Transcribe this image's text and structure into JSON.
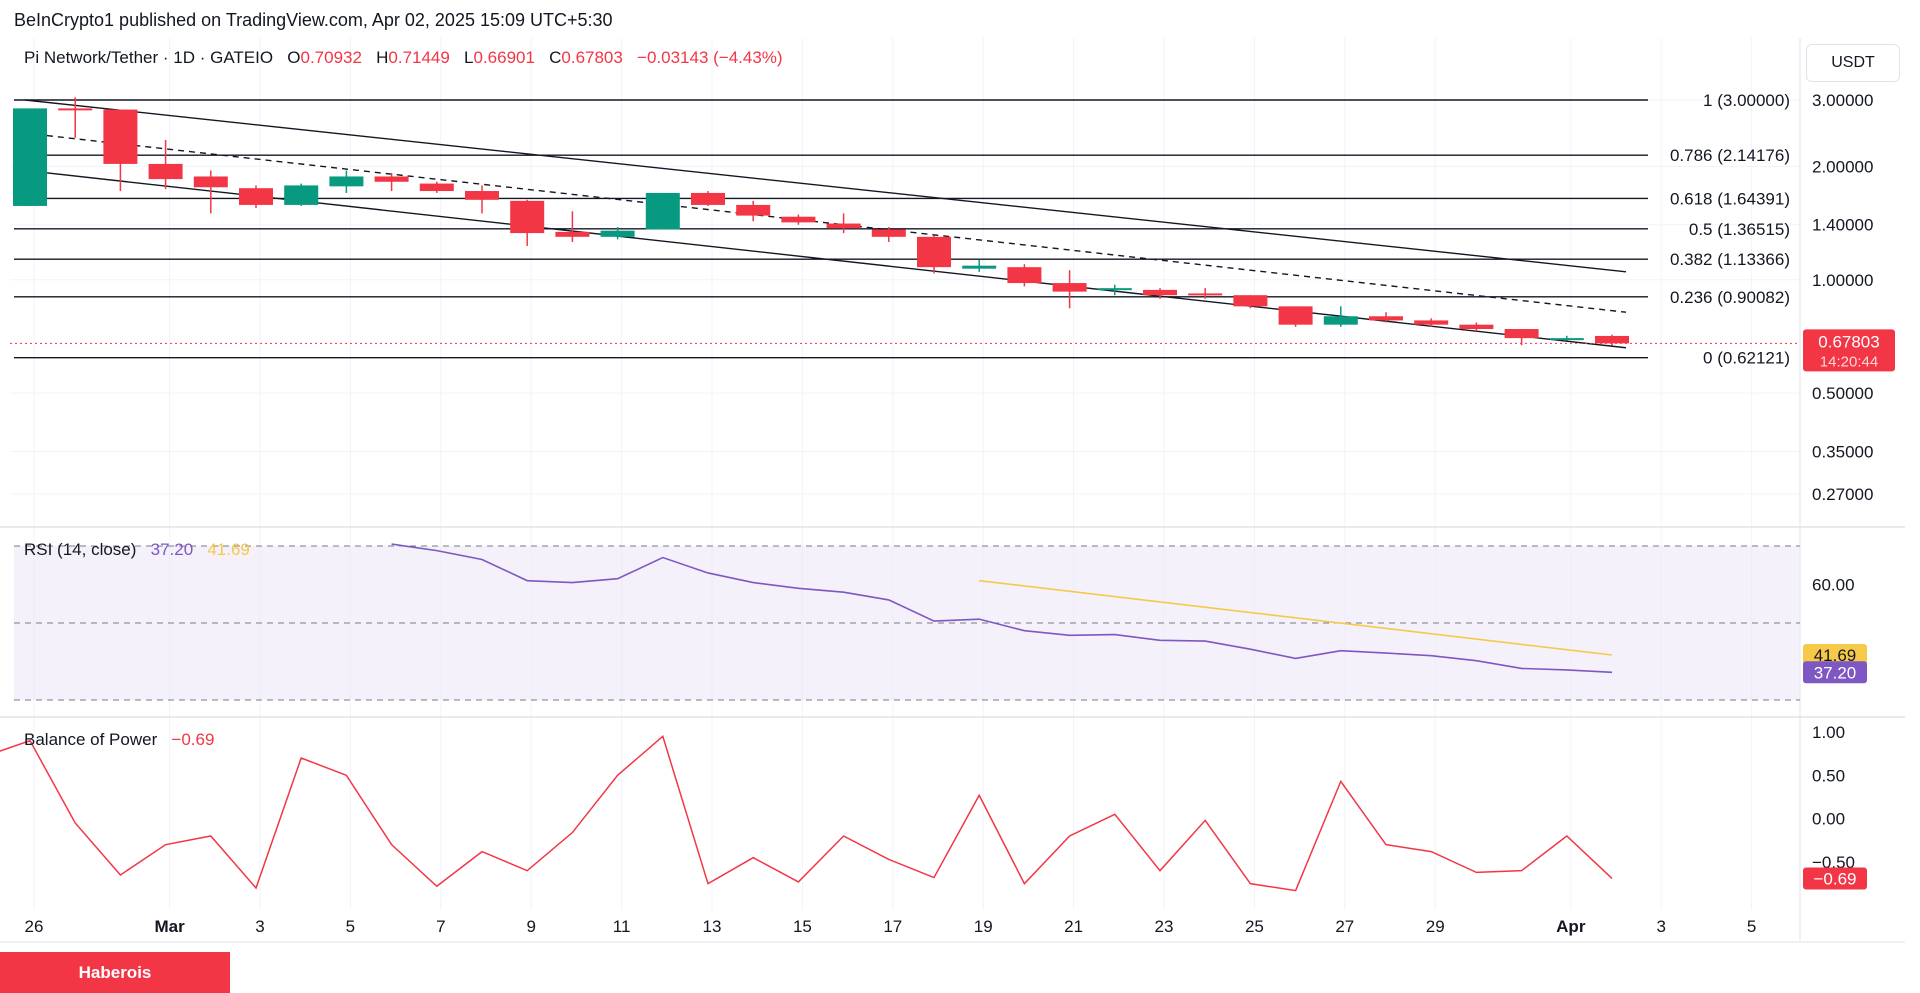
{
  "publisher": "BeInCrypto1 published on TradingView.com, Apr 02, 2025 15:09 UTC+5:30",
  "legend": {
    "symbol": "Pi Network/Tether · 1D · GATEIO",
    "o_label": "O",
    "o": "0.70932",
    "h_label": "H",
    "h": "0.71449",
    "l_label": "L",
    "l": "0.66901",
    "c_label": "C",
    "c": "0.67803",
    "change": "−0.03143 (−4.43%)"
  },
  "currency": "USDT",
  "brand": "Haberois",
  "colors": {
    "up": "#089981",
    "down": "#f23645",
    "rsi": "#7e57c2",
    "rsi_ma": "#f7c948",
    "bop": "#f23645"
  },
  "price_axis": [
    "3.00000",
    "2.00000",
    "1.40000",
    "1.00000",
    "0.50000",
    "0.35000",
    "0.27000"
  ],
  "last_price_tag": {
    "price": "0.67803",
    "countdown": "14:20:44"
  },
  "fib_levels": [
    {
      "label": "1 (3.00000)",
      "value": 3.0
    },
    {
      "label": "0.786 (2.14176)",
      "value": 2.14176
    },
    {
      "label": "0.618 (1.64391)",
      "value": 1.64391
    },
    {
      "label": "0.5 (1.36515)",
      "value": 1.36515
    },
    {
      "label": "0.382 (1.13366)",
      "value": 1.13366
    },
    {
      "label": "0.236 (0.90082)",
      "value": 0.90082
    },
    {
      "label": "0 (0.62121)",
      "value": 0.62121
    }
  ],
  "x_labels": [
    "26",
    "Mar",
    "3",
    "5",
    "7",
    "9",
    "11",
    "13",
    "15",
    "17",
    "19",
    "21",
    "23",
    "25",
    "27",
    "29",
    "Apr",
    "3",
    "5"
  ],
  "rsi": {
    "title": "RSI (14, close)",
    "value": "37.20",
    "ma_value": "41.69",
    "axis_label": "60.00",
    "tag_ma": "41.69",
    "tag_rsi": "37.20"
  },
  "bop": {
    "title": "Balance of Power",
    "value": "−0.69",
    "axis": [
      "1.00",
      "0.50",
      "0.00",
      "−0.50"
    ],
    "tag": "−0.69"
  },
  "chart_data": [
    {
      "type": "candlestick",
      "title": "Pi Network/Tether · 1D · GATEIO",
      "scale": "log",
      "ylim": [
        0.24,
        3.4
      ],
      "x": [
        "Feb 26",
        "Feb 27",
        "Feb 28",
        "Mar 1",
        "Mar 2",
        "Mar 3",
        "Mar 4",
        "Mar 5",
        "Mar 6",
        "Mar 7",
        "Mar 8",
        "Mar 9",
        "Mar 10",
        "Mar 11",
        "Mar 12",
        "Mar 13",
        "Mar 14",
        "Mar 15",
        "Mar 16",
        "Mar 17",
        "Mar 18",
        "Mar 19",
        "Mar 20",
        "Mar 21",
        "Mar 22",
        "Mar 23",
        "Mar 24",
        "Mar 25",
        "Mar 26",
        "Mar 27",
        "Mar 28",
        "Mar 29",
        "Mar 30",
        "Mar 31",
        "Apr 1",
        "Apr 2"
      ],
      "ohlc": [
        [
          1.57,
          2.85,
          1.57,
          2.85
        ],
        [
          2.85,
          3.05,
          2.38,
          2.82
        ],
        [
          2.83,
          2.83,
          1.72,
          2.03
        ],
        [
          2.03,
          2.35,
          1.74,
          1.85
        ],
        [
          1.88,
          1.95,
          1.5,
          1.76
        ],
        [
          1.75,
          1.78,
          1.55,
          1.58
        ],
        [
          1.58,
          1.8,
          1.57,
          1.78
        ],
        [
          1.77,
          1.95,
          1.7,
          1.88
        ],
        [
          1.88,
          1.92,
          1.72,
          1.82
        ],
        [
          1.8,
          1.82,
          1.7,
          1.72
        ],
        [
          1.72,
          1.78,
          1.5,
          1.63
        ],
        [
          1.62,
          1.63,
          1.23,
          1.33
        ],
        [
          1.34,
          1.52,
          1.26,
          1.3
        ],
        [
          1.3,
          1.38,
          1.28,
          1.35
        ],
        [
          1.36,
          1.7,
          1.36,
          1.7
        ],
        [
          1.7,
          1.72,
          1.57,
          1.58
        ],
        [
          1.58,
          1.62,
          1.43,
          1.48
        ],
        [
          1.47,
          1.49,
          1.4,
          1.42
        ],
        [
          1.41,
          1.5,
          1.33,
          1.37
        ],
        [
          1.36,
          1.38,
          1.26,
          1.3
        ],
        [
          1.3,
          1.31,
          1.04,
          1.08
        ],
        [
          1.07,
          1.13,
          1.05,
          1.09
        ],
        [
          1.08,
          1.1,
          0.96,
          0.98
        ],
        [
          0.98,
          1.06,
          0.84,
          0.93
        ],
        [
          0.95,
          0.97,
          0.91,
          0.95
        ],
        [
          0.94,
          0.95,
          0.89,
          0.91
        ],
        [
          0.92,
          0.95,
          0.89,
          0.91
        ],
        [
          0.91,
          0.91,
          0.84,
          0.85
        ],
        [
          0.85,
          0.85,
          0.75,
          0.76
        ],
        [
          0.76,
          0.85,
          0.75,
          0.8
        ],
        [
          0.8,
          0.82,
          0.77,
          0.78
        ],
        [
          0.78,
          0.79,
          0.75,
          0.76
        ],
        [
          0.76,
          0.77,
          0.73,
          0.74
        ],
        [
          0.74,
          0.74,
          0.67,
          0.7
        ],
        [
          0.7,
          0.71,
          0.69,
          0.7
        ],
        [
          0.70932,
          0.71449,
          0.66901,
          0.67803
        ]
      ],
      "trendlines": [
        {
          "name": "channel-upper",
          "from": [
            "Feb 26",
            3.0
          ],
          "to": [
            "Apr 2",
            1.05
          ],
          "style": "solid"
        },
        {
          "name": "channel-mid",
          "from": [
            "Feb 26",
            2.45
          ],
          "to": [
            "Apr 2",
            0.82
          ],
          "style": "dashed"
        },
        {
          "name": "channel-lower",
          "from": [
            "Feb 26",
            1.95
          ],
          "to": [
            "Apr 2",
            0.66
          ],
          "style": "solid"
        }
      ]
    },
    {
      "type": "line",
      "title": "RSI (14, close)",
      "ylim": [
        20,
        80
      ],
      "series": [
        {
          "name": "RSI",
          "x": [
            "Mar 6",
            "Mar 7",
            "Mar 8",
            "Mar 9",
            "Mar 10",
            "Mar 11",
            "Mar 12",
            "Mar 13",
            "Mar 14",
            "Mar 15",
            "Mar 16",
            "Mar 17",
            "Mar 18",
            "Mar 19",
            "Mar 20",
            "Mar 21",
            "Mar 22",
            "Mar 23",
            "Mar 24",
            "Mar 25",
            "Mar 26",
            "Mar 27",
            "Mar 28",
            "Mar 29",
            "Mar 30",
            "Mar 31",
            "Apr 1",
            "Apr 2"
          ],
          "values": [
            70.5,
            68.8,
            66.5,
            61.0,
            60.5,
            61.5,
            67.0,
            63.0,
            60.5,
            59.0,
            58.0,
            56.0,
            50.5,
            51.0,
            48.0,
            46.8,
            47.0,
            45.5,
            45.3,
            43.2,
            40.8,
            42.8,
            42.2,
            41.5,
            40.2,
            38.2,
            37.8,
            37.2
          ]
        },
        {
          "name": "RSI-based MA",
          "x": [
            "Mar 19",
            "Apr 2"
          ],
          "values": [
            61.0,
            41.69
          ]
        }
      ]
    },
    {
      "type": "line",
      "title": "Balance of Power",
      "ylim": [
        -0.85,
        1.1
      ],
      "series": [
        {
          "name": "Balance of Power",
          "x": [
            "Feb 25",
            "Feb 26",
            "Feb 27",
            "Feb 28",
            "Mar 1",
            "Mar 2",
            "Mar 3",
            "Mar 4",
            "Mar 5",
            "Mar 6",
            "Mar 7",
            "Mar 8",
            "Mar 9",
            "Mar 10",
            "Mar 11",
            "Mar 12",
            "Mar 13",
            "Mar 14",
            "Mar 15",
            "Mar 16",
            "Mar 17",
            "Mar 18",
            "Mar 19",
            "Mar 20",
            "Mar 21",
            "Mar 22",
            "Mar 23",
            "Mar 24",
            "Mar 25",
            "Mar 26",
            "Mar 27",
            "Mar 28",
            "Mar 29",
            "Mar 30",
            "Mar 31",
            "Apr 1",
            "Apr 2"
          ],
          "values": [
            0.72,
            0.9,
            -0.05,
            -0.65,
            -0.3,
            -0.2,
            -0.8,
            0.7,
            0.5,
            -0.3,
            -0.78,
            -0.38,
            -0.6,
            -0.16,
            0.5,
            0.95,
            -0.75,
            -0.45,
            -0.73,
            -0.2,
            -0.47,
            -0.68,
            0.27,
            -0.75,
            -0.2,
            0.05,
            -0.6,
            -0.02,
            -0.75,
            -0.83,
            0.43,
            -0.3,
            -0.38,
            -0.62,
            -0.6,
            -0.2,
            -0.69
          ]
        }
      ]
    }
  ]
}
